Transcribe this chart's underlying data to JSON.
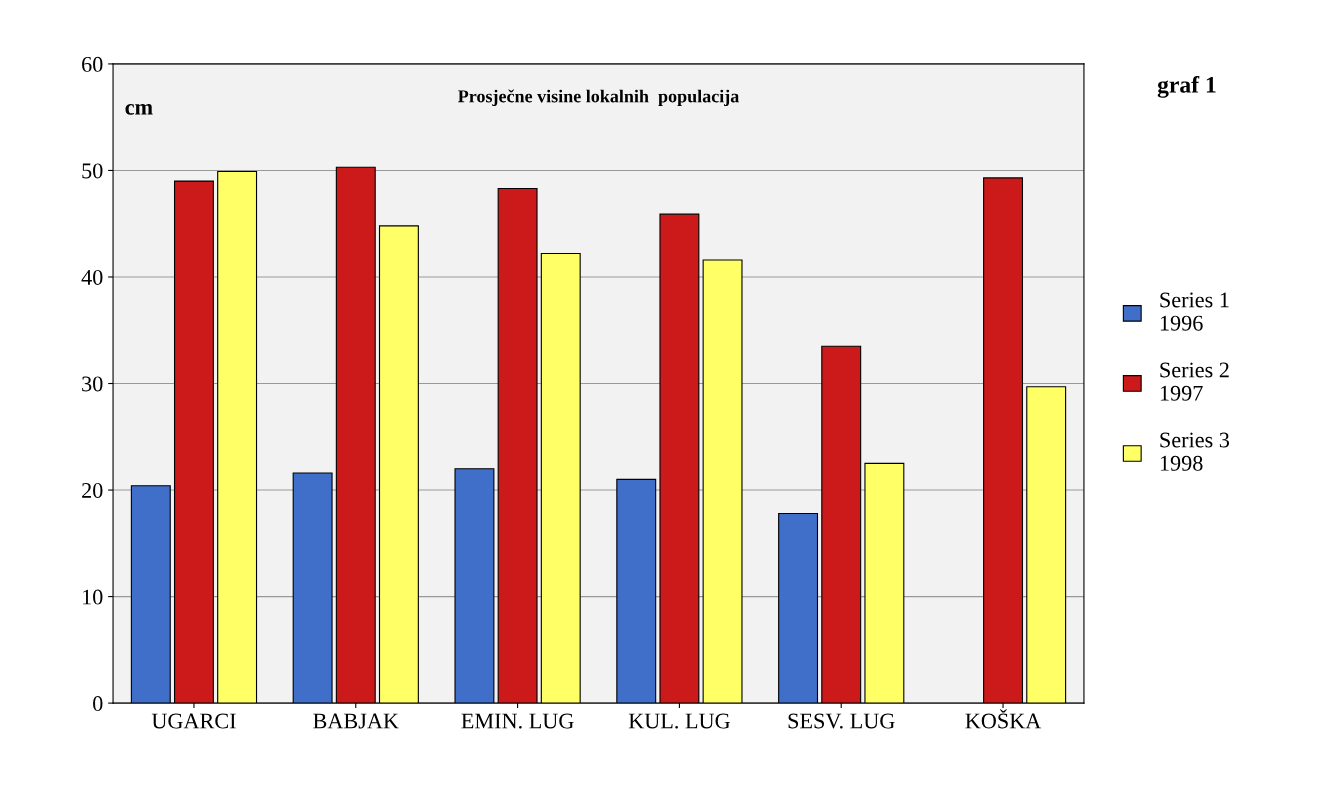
{
  "chart_data": {
    "type": "bar",
    "title": "Prosječne visine lokalnih  populacija",
    "ylabel": "cm",
    "annotations": [
      "graf 1"
    ],
    "categories": [
      "UGARCI",
      "BABJAK",
      "EMIN. LUG",
      "KUL. LUG",
      "SESV. LUG",
      "KOŠKA"
    ],
    "series": [
      {
        "name": "Series 1\n1996",
        "color": "#3f6fc8",
        "values": [
          20.4,
          21.6,
          22.0,
          21.0,
          17.8,
          null
        ]
      },
      {
        "name": "Series 2\n1997",
        "color": "#cc1a1a",
        "values": [
          49.0,
          50.3,
          48.3,
          45.9,
          33.5,
          49.3
        ]
      },
      {
        "name": "Series 3\n1998",
        "color": "#ffff66",
        "values": [
          49.9,
          44.8,
          42.2,
          41.6,
          22.5,
          29.7
        ]
      }
    ],
    "ylim": [
      0,
      60
    ],
    "yticks": [
      0,
      10,
      20,
      30,
      40,
      50,
      60
    ],
    "grid": "y",
    "legend": "right"
  }
}
